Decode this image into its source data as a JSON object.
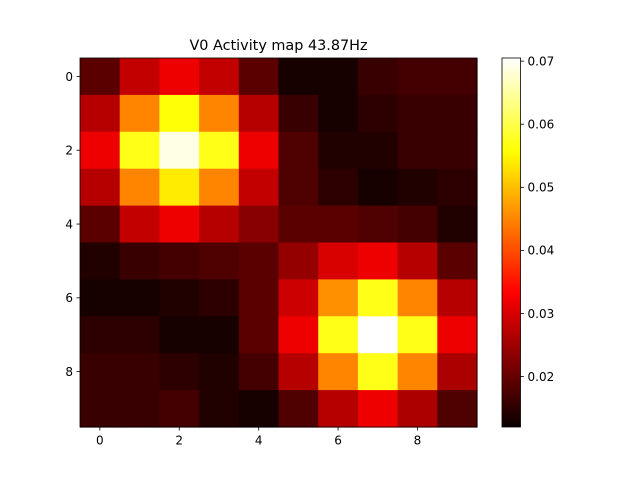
{
  "chart_data": {
    "type": "heatmap",
    "title": "V0 Activity map 43.87Hz",
    "xlabel": "",
    "ylabel": "",
    "colormap": "hot",
    "x_ticks": [
      "0",
      "2",
      "4",
      "6",
      "8"
    ],
    "y_ticks": [
      "0",
      "2",
      "4",
      "6",
      "8"
    ],
    "colorbar": {
      "range": [
        0.012,
        0.0705
      ],
      "ticks": [
        "0.02",
        "0.03",
        "0.04",
        "0.05",
        "0.06",
        "0.07"
      ],
      "tick_values": [
        0.02,
        0.03,
        0.04,
        0.05,
        0.06,
        0.07
      ]
    },
    "values": [
      [
        0.019,
        0.028,
        0.032,
        0.028,
        0.019,
        0.013,
        0.013,
        0.016,
        0.017,
        0.017
      ],
      [
        0.027,
        0.045,
        0.056,
        0.045,
        0.027,
        0.016,
        0.013,
        0.015,
        0.016,
        0.016
      ],
      [
        0.032,
        0.057,
        0.069,
        0.057,
        0.032,
        0.018,
        0.014,
        0.014,
        0.016,
        0.016
      ],
      [
        0.027,
        0.045,
        0.054,
        0.045,
        0.028,
        0.018,
        0.015,
        0.013,
        0.014,
        0.015
      ],
      [
        0.019,
        0.028,
        0.032,
        0.027,
        0.023,
        0.019,
        0.019,
        0.018,
        0.017,
        0.014
      ],
      [
        0.014,
        0.016,
        0.017,
        0.018,
        0.019,
        0.024,
        0.03,
        0.032,
        0.027,
        0.019
      ],
      [
        0.013,
        0.013,
        0.014,
        0.015,
        0.019,
        0.029,
        0.046,
        0.057,
        0.045,
        0.027
      ],
      [
        0.015,
        0.015,
        0.013,
        0.013,
        0.019,
        0.032,
        0.057,
        0.0705,
        0.057,
        0.032
      ],
      [
        0.016,
        0.016,
        0.015,
        0.014,
        0.017,
        0.027,
        0.045,
        0.057,
        0.045,
        0.026
      ],
      [
        0.016,
        0.016,
        0.017,
        0.014,
        0.013,
        0.018,
        0.027,
        0.032,
        0.026,
        0.018
      ]
    ]
  }
}
